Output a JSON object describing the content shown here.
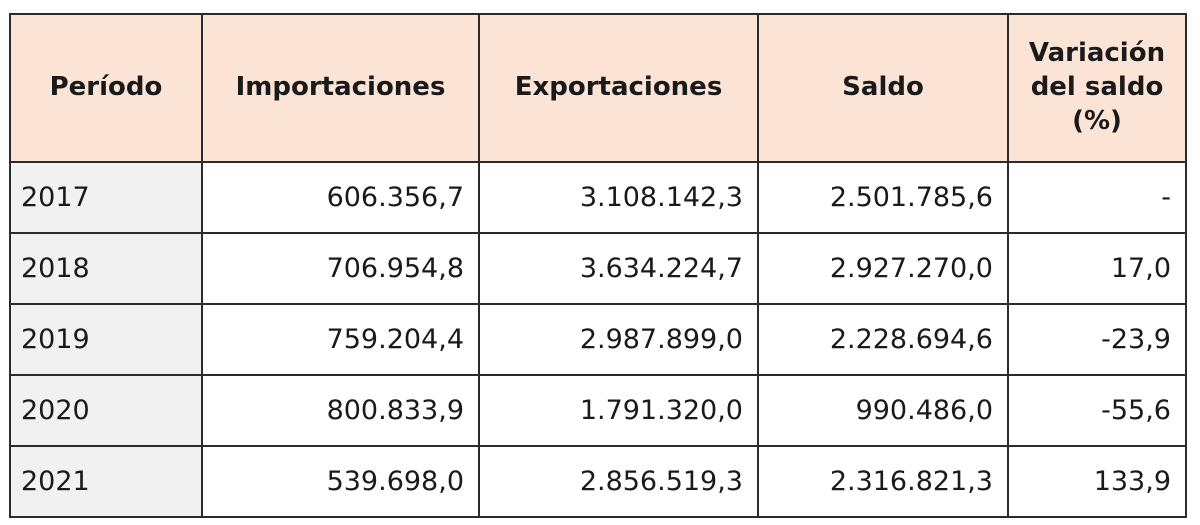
{
  "table": {
    "headers": [
      "Período",
      "Importaciones",
      "Exportaciones",
      "Saldo",
      "Variación del saldo (%)"
    ],
    "rows": [
      [
        "2017",
        "606.356,7",
        "3.108.142,3",
        "2.501.785,6",
        "-"
      ],
      [
        "2018",
        "706.954,8",
        "3.634.224,7",
        "2.927.270,0",
        "17,0"
      ],
      [
        "2019",
        "759.204,4",
        "2.987.899,0",
        "2.228.694,6",
        "-23,9"
      ],
      [
        "2020",
        "800.833,9",
        "1.791.320,0",
        "990.486,0",
        "-55,6"
      ],
      [
        "2021",
        "539.698,0",
        "2.856.519,3",
        "2.316.821,3",
        "133,9"
      ]
    ]
  },
  "colors": {
    "header_background": "#fbe4d5",
    "period_column_background": "#f1f1f1",
    "border": "#2b2b2b"
  }
}
